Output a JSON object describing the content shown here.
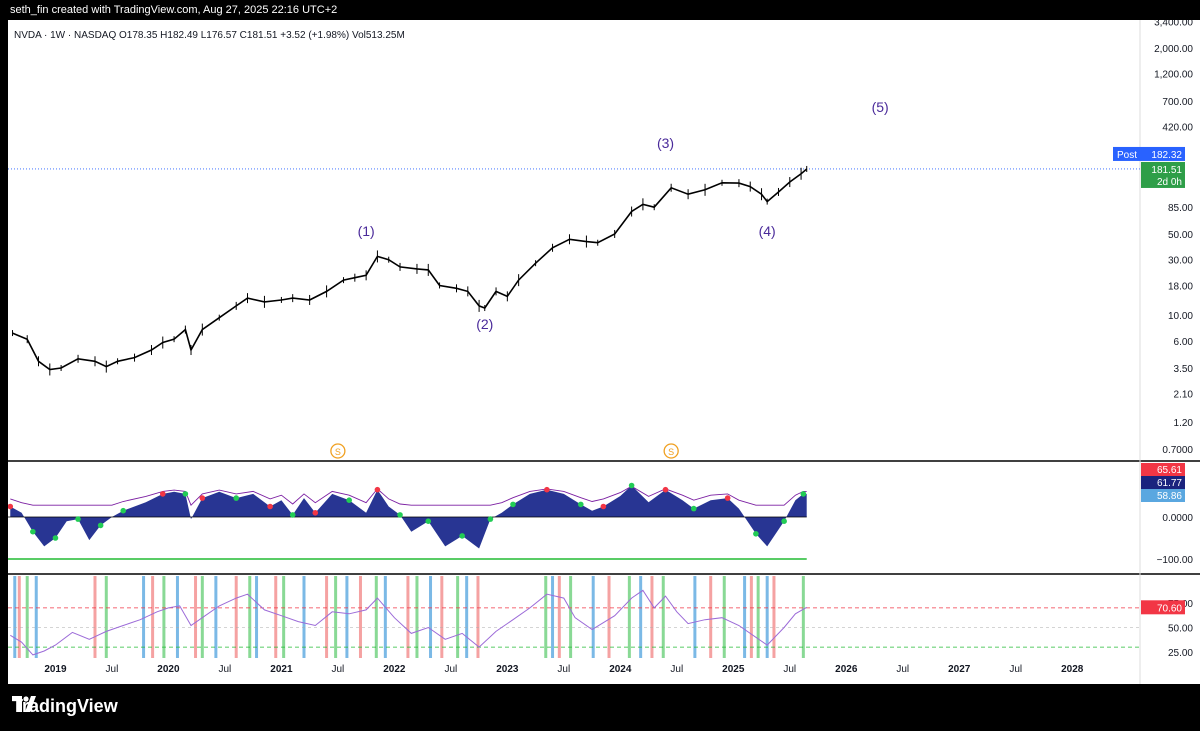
{
  "attribution": "seth_fin created with TradingView.com, Aug 27, 2025 22:16 UTC+2",
  "symbol_line": {
    "text": "NVDA · 1W · NASDAQ  O178.35  H182.49  L176.57  C181.51  +3.52 (+1.98%)  Vol513.25M"
  },
  "footer": {
    "logo_text": "TradingView"
  },
  "colors": {
    "price": "#000000",
    "wave_label": "#4a2a9a",
    "post_tag": "#2962ff",
    "last_tag": "#2e9e48",
    "osc_fill": "#283593",
    "osc_line": "#7b1fa2",
    "rsi_line": "#9c6bd8",
    "rsi_hot": "#f23645",
    "band_blue": "#5aa7e0",
    "band_red": "#f28b8b",
    "band_green": "#6ccf7a"
  },
  "chart_data": [
    {
      "type": "line",
      "title": "",
      "series": [
        {
          "values": [
            [
              2018.62,
              7.0
            ],
            [
              2018.75,
              6.2
            ],
            [
              2018.85,
              4.0
            ],
            [
              2018.95,
              3.4
            ],
            [
              2019.05,
              3.5
            ],
            [
              2019.2,
              4.2
            ],
            [
              2019.35,
              4.0
            ],
            [
              2019.45,
              3.6
            ],
            [
              2019.55,
              4.0
            ],
            [
              2019.7,
              4.3
            ],
            [
              2019.85,
              5.0
            ],
            [
              2019.95,
              5.8
            ],
            [
              2020.05,
              6.2
            ],
            [
              2020.15,
              7.5
            ],
            [
              2020.2,
              5.0
            ],
            [
              2020.3,
              7.5
            ],
            [
              2020.45,
              9.5
            ],
            [
              2020.6,
              12.0
            ],
            [
              2020.7,
              14.0
            ],
            [
              2020.85,
              13.0
            ],
            [
              2021.0,
              13.5
            ],
            [
              2021.1,
              14.0
            ],
            [
              2021.25,
              13.5
            ],
            [
              2021.4,
              16.0
            ],
            [
              2021.55,
              20.0
            ],
            [
              2021.65,
              21.0
            ],
            [
              2021.75,
              22.0
            ],
            [
              2021.85,
              32.0
            ],
            [
              2021.95,
              30.0
            ],
            [
              2022.05,
              26.0
            ],
            [
              2022.2,
              25.0
            ],
            [
              2022.3,
              24.5
            ],
            [
              2022.4,
              18.0
            ],
            [
              2022.55,
              17.0
            ],
            [
              2022.65,
              16.0
            ],
            [
              2022.75,
              12.0
            ],
            [
              2022.8,
              11.5
            ],
            [
              2022.9,
              16.0
            ],
            [
              2023.0,
              14.5
            ],
            [
              2023.1,
              20.0
            ],
            [
              2023.25,
              28.0
            ],
            [
              2023.4,
              38.0
            ],
            [
              2023.55,
              45.0
            ],
            [
              2023.7,
              43.0
            ],
            [
              2023.8,
              42.0
            ],
            [
              2023.95,
              50.0
            ],
            [
              2024.1,
              78.0
            ],
            [
              2024.2,
              90.0
            ],
            [
              2024.3,
              85.0
            ],
            [
              2024.45,
              125.0
            ],
            [
              2024.6,
              110.0
            ],
            [
              2024.75,
              120.0
            ],
            [
              2024.9,
              138.0
            ],
            [
              2025.05,
              137.0
            ],
            [
              2025.15,
              128.0
            ],
            [
              2025.25,
              110.0
            ],
            [
              2025.3,
              95.0
            ],
            [
              2025.4,
              115.0
            ],
            [
              2025.5,
              140.0
            ],
            [
              2025.6,
              165.0
            ],
            [
              2025.65,
              181.51
            ]
          ]
        }
      ],
      "y_scale": "log",
      "yticks": [
        "3,400.00",
        "2,000.00",
        "1,200.00",
        "700.00",
        "420.00",
        "85.00",
        "50.00",
        "30.00",
        "18.00",
        "10.00",
        "6.00",
        "3.50",
        "2.10",
        "1.20",
        "0.7000"
      ],
      "wave_labels": [
        {
          "text": "(1)",
          "x": 2021.75,
          "y": 48
        },
        {
          "text": "(2)",
          "x": 2022.8,
          "y": 7.6
        },
        {
          "text": "(3)",
          "x": 2024.4,
          "y": 275
        },
        {
          "text": "(4)",
          "x": 2025.3,
          "y": 48
        },
        {
          "text": "(5)",
          "x": 2026.3,
          "y": 560
        }
      ],
      "price_tags": [
        {
          "label": "Post",
          "value": "182.32"
        },
        {
          "value": "181.51",
          "sub": "2d 0h"
        }
      ],
      "x_ticks": [
        "2019",
        "Jul",
        "2020",
        "Jul",
        "2021",
        "Jul",
        "2022",
        "Jul",
        "2023",
        "Jul",
        "2024",
        "Jul",
        "2025",
        "Jul",
        "2026",
        "Jul",
        "2027",
        "Jul",
        "2028"
      ]
    },
    {
      "type": "area",
      "title": "",
      "yticks": [
        "0.0000",
        "−100.00"
      ],
      "values": [
        [
          2018.6,
          25
        ],
        [
          2018.7,
          10
        ],
        [
          2018.8,
          -35
        ],
        [
          2018.9,
          -70
        ],
        [
          2019.0,
          -50
        ],
        [
          2019.1,
          -10
        ],
        [
          2019.2,
          -5
        ],
        [
          2019.3,
          -55
        ],
        [
          2019.4,
          -20
        ],
        [
          2019.5,
          0
        ],
        [
          2019.6,
          15
        ],
        [
          2019.8,
          35
        ],
        [
          2019.95,
          55
        ],
        [
          2020.05,
          60
        ],
        [
          2020.15,
          55
        ],
        [
          2020.2,
          -5
        ],
        [
          2020.3,
          45
        ],
        [
          2020.45,
          60
        ],
        [
          2020.6,
          45
        ],
        [
          2020.75,
          55
        ],
        [
          2020.9,
          25
        ],
        [
          2021.0,
          40
        ],
        [
          2021.1,
          5
        ],
        [
          2021.2,
          45
        ],
        [
          2021.3,
          10
        ],
        [
          2021.45,
          55
        ],
        [
          2021.6,
          40
        ],
        [
          2021.75,
          10
        ],
        [
          2021.85,
          65
        ],
        [
          2021.95,
          25
        ],
        [
          2022.05,
          5
        ],
        [
          2022.15,
          -35
        ],
        [
          2022.3,
          -10
        ],
        [
          2022.45,
          -70
        ],
        [
          2022.6,
          -45
        ],
        [
          2022.75,
          -75
        ],
        [
          2022.85,
          -5
        ],
        [
          2022.95,
          10
        ],
        [
          2023.05,
          30
        ],
        [
          2023.2,
          55
        ],
        [
          2023.35,
          65
        ],
        [
          2023.5,
          55
        ],
        [
          2023.65,
          30
        ],
        [
          2023.75,
          15
        ],
        [
          2023.85,
          25
        ],
        [
          2024.0,
          50
        ],
        [
          2024.1,
          75
        ],
        [
          2024.25,
          35
        ],
        [
          2024.4,
          65
        ],
        [
          2024.55,
          40
        ],
        [
          2024.65,
          20
        ],
        [
          2024.8,
          40
        ],
        [
          2024.95,
          45
        ],
        [
          2025.05,
          20
        ],
        [
          2025.2,
          -40
        ],
        [
          2025.3,
          -70
        ],
        [
          2025.45,
          -10
        ],
        [
          2025.55,
          40
        ],
        [
          2025.62,
          55
        ],
        [
          2025.65,
          55
        ]
      ],
      "tags": [
        {
          "value": "65.61"
        },
        {
          "value": "61.77"
        },
        {
          "value": "58.86"
        }
      ],
      "markers": [
        {
          "text": "S",
          "x": 2021.5
        },
        {
          "text": "S",
          "x": 2024.45
        }
      ]
    },
    {
      "type": "line",
      "title": "",
      "yticks": [
        "75.00",
        "50.00",
        "25.00"
      ],
      "values": [
        [
          2018.6,
          42
        ],
        [
          2018.7,
          35
        ],
        [
          2018.8,
          22
        ],
        [
          2018.9,
          26
        ],
        [
          2019.0,
          32
        ],
        [
          2019.15,
          45
        ],
        [
          2019.3,
          38
        ],
        [
          2019.45,
          46
        ],
        [
          2019.6,
          52
        ],
        [
          2019.75,
          58
        ],
        [
          2019.9,
          66
        ],
        [
          2020.0,
          70
        ],
        [
          2020.1,
          72
        ],
        [
          2020.2,
          52
        ],
        [
          2020.3,
          60
        ],
        [
          2020.45,
          72
        ],
        [
          2020.6,
          80
        ],
        [
          2020.7,
          84
        ],
        [
          2020.85,
          68
        ],
        [
          2021.0,
          62
        ],
        [
          2021.15,
          56
        ],
        [
          2021.3,
          52
        ],
        [
          2021.45,
          66
        ],
        [
          2021.6,
          64
        ],
        [
          2021.75,
          68
        ],
        [
          2021.85,
          80
        ],
        [
          2022.0,
          60
        ],
        [
          2022.15,
          44
        ],
        [
          2022.3,
          50
        ],
        [
          2022.45,
          38
        ],
        [
          2022.6,
          44
        ],
        [
          2022.75,
          30
        ],
        [
          2022.9,
          46
        ],
        [
          2023.05,
          58
        ],
        [
          2023.2,
          70
        ],
        [
          2023.35,
          84
        ],
        [
          2023.5,
          80
        ],
        [
          2023.6,
          60
        ],
        [
          2023.75,
          48
        ],
        [
          2023.95,
          62
        ],
        [
          2024.1,
          80
        ],
        [
          2024.2,
          88
        ],
        [
          2024.3,
          70
        ],
        [
          2024.4,
          82
        ],
        [
          2024.5,
          66
        ],
        [
          2024.6,
          54
        ],
        [
          2024.75,
          58
        ],
        [
          2024.9,
          60
        ],
        [
          2025.05,
          52
        ],
        [
          2025.2,
          40
        ],
        [
          2025.3,
          32
        ],
        [
          2025.45,
          50
        ],
        [
          2025.55,
          64
        ],
        [
          2025.65,
          70.6
        ]
      ],
      "levels": [
        70,
        30
      ],
      "tag": {
        "value": "70.60"
      },
      "band_years": [
        2018.64,
        2018.68,
        2018.75,
        2018.83,
        2019.35,
        2019.45,
        2019.78,
        2019.86,
        2019.96,
        2020.08,
        2020.24,
        2020.3,
        2020.42,
        2020.6,
        2020.72,
        2020.78,
        2020.95,
        2021.02,
        2021.2,
        2021.4,
        2021.48,
        2021.58,
        2021.7,
        2021.84,
        2021.92,
        2022.12,
        2022.2,
        2022.32,
        2022.42,
        2022.56,
        2022.64,
        2022.74,
        2023.34,
        2023.4,
        2023.46,
        2023.56,
        2023.76,
        2023.9,
        2024.08,
        2024.18,
        2024.28,
        2024.38,
        2024.66,
        2024.8,
        2024.92,
        2025.1,
        2025.16,
        2025.22,
        2025.3,
        2025.36,
        2025.62
      ]
    }
  ]
}
